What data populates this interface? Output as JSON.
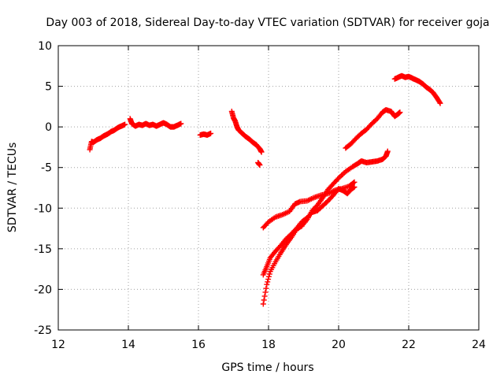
{
  "chart_data": {
    "type": "scatter",
    "title": "Day 003 of 2018, Sidereal Day-to-day VTEC variation (SDTVAR) for receiver goja",
    "xlabel": "GPS time / hours",
    "ylabel": "SDTVAR / TECUs",
    "xlim": [
      12,
      24
    ],
    "ylim": [
      -25,
      10
    ],
    "x_ticks": [
      12,
      14,
      16,
      18,
      20,
      22,
      24
    ],
    "y_ticks": [
      -25,
      -20,
      -15,
      -10,
      -5,
      0,
      5,
      10
    ],
    "x_tick_labels": [
      "12",
      "14",
      "16",
      "18",
      "20",
      "22",
      "24"
    ],
    "y_tick_labels": [
      "-25",
      "-20",
      "-15",
      "-10",
      "-5",
      "0",
      "5",
      "10"
    ],
    "grid": true,
    "marker": "+",
    "color": "#ff0000",
    "series": [
      {
        "points": [
          [
            12.9,
            -2.8
          ],
          [
            12.95,
            -1.8
          ],
          [
            13.0,
            -1.9
          ],
          [
            13.1,
            -1.6
          ],
          [
            13.2,
            -1.4
          ],
          [
            13.3,
            -1.1
          ],
          [
            13.4,
            -0.9
          ],
          [
            13.5,
            -0.6
          ],
          [
            13.6,
            -0.4
          ],
          [
            13.7,
            -0.1
          ],
          [
            13.8,
            0.1
          ],
          [
            13.9,
            0.3
          ]
        ]
      },
      {
        "points": [
          [
            14.05,
            1.0
          ],
          [
            14.1,
            0.4
          ],
          [
            14.2,
            0.1
          ],
          [
            14.3,
            0.3
          ],
          [
            14.4,
            0.2
          ],
          [
            14.5,
            0.4
          ],
          [
            14.6,
            0.2
          ],
          [
            14.7,
            0.3
          ],
          [
            14.8,
            0.1
          ],
          [
            14.9,
            0.3
          ],
          [
            15.0,
            0.5
          ],
          [
            15.1,
            0.3
          ],
          [
            15.2,
            0.0
          ],
          [
            15.3,
            0.0
          ],
          [
            15.4,
            0.2
          ],
          [
            15.5,
            0.4
          ]
        ]
      },
      {
        "points": [
          [
            16.05,
            -1.0
          ],
          [
            16.15,
            -0.9
          ],
          [
            16.25,
            -1.0
          ],
          [
            16.35,
            -0.8
          ]
        ]
      },
      {
        "points": [
          [
            16.95,
            1.9
          ],
          [
            17.0,
            1.1
          ],
          [
            17.05,
            0.7
          ],
          [
            17.1,
            0.0
          ],
          [
            17.15,
            -0.4
          ],
          [
            17.25,
            -0.8
          ],
          [
            17.35,
            -1.2
          ],
          [
            17.45,
            -1.5
          ],
          [
            17.55,
            -1.9
          ],
          [
            17.65,
            -2.2
          ],
          [
            17.75,
            -2.7
          ],
          [
            17.8,
            -3.1
          ]
        ]
      },
      {
        "points": [
          [
            17.7,
            -4.4
          ],
          [
            17.75,
            -4.7
          ]
        ]
      },
      {
        "points": [
          [
            17.85,
            -12.4
          ],
          [
            18.0,
            -11.7
          ],
          [
            18.2,
            -11.1
          ],
          [
            18.4,
            -10.8
          ],
          [
            18.6,
            -10.4
          ],
          [
            18.75,
            -9.5
          ],
          [
            18.9,
            -9.2
          ],
          [
            19.1,
            -9.1
          ],
          [
            19.3,
            -8.7
          ],
          [
            19.5,
            -8.4
          ],
          [
            19.7,
            -8.2
          ],
          [
            19.9,
            -7.8
          ],
          [
            20.1,
            -7.6
          ],
          [
            20.3,
            -7.3
          ],
          [
            20.45,
            -6.8
          ]
        ]
      },
      {
        "points": [
          [
            17.85,
            -18.2
          ],
          [
            17.95,
            -17.2
          ],
          [
            18.05,
            -16.1
          ],
          [
            18.2,
            -15.3
          ],
          [
            18.35,
            -14.6
          ],
          [
            18.5,
            -13.8
          ],
          [
            18.65,
            -13.2
          ],
          [
            18.8,
            -12.5
          ],
          [
            18.95,
            -11.7
          ],
          [
            19.1,
            -11.2
          ],
          [
            19.25,
            -10.5
          ],
          [
            19.4,
            -10.3
          ],
          [
            19.55,
            -9.7
          ],
          [
            19.7,
            -9.1
          ],
          [
            19.85,
            -8.4
          ],
          [
            20.0,
            -7.6
          ],
          [
            20.15,
            -7.9
          ],
          [
            20.25,
            -8.2
          ],
          [
            20.35,
            -7.7
          ],
          [
            20.45,
            -7.4
          ]
        ]
      },
      {
        "points": [
          [
            17.85,
            -21.8
          ],
          [
            17.95,
            -19.4
          ],
          [
            18.05,
            -17.8
          ],
          [
            18.2,
            -16.6
          ],
          [
            18.35,
            -15.5
          ],
          [
            18.5,
            -14.5
          ],
          [
            18.65,
            -13.6
          ],
          [
            18.8,
            -12.6
          ],
          [
            18.95,
            -12.2
          ],
          [
            19.1,
            -11.4
          ],
          [
            19.25,
            -10.3
          ],
          [
            19.4,
            -9.6
          ],
          [
            19.55,
            -8.7
          ],
          [
            19.7,
            -7.7
          ],
          [
            19.85,
            -7.0
          ],
          [
            20.0,
            -6.3
          ],
          [
            20.2,
            -5.5
          ],
          [
            20.4,
            -4.9
          ],
          [
            20.55,
            -4.5
          ],
          [
            20.65,
            -4.2
          ],
          [
            20.8,
            -4.4
          ],
          [
            20.95,
            -4.3
          ],
          [
            21.1,
            -4.2
          ],
          [
            21.25,
            -4.0
          ],
          [
            21.35,
            -3.6
          ],
          [
            21.4,
            -3.0
          ]
        ]
      },
      {
        "points": [
          [
            20.2,
            -2.6
          ],
          [
            20.35,
            -2.1
          ],
          [
            20.5,
            -1.4
          ],
          [
            20.65,
            -0.8
          ],
          [
            20.8,
            -0.3
          ],
          [
            20.95,
            0.4
          ],
          [
            21.1,
            1.0
          ],
          [
            21.25,
            1.8
          ],
          [
            21.35,
            2.1
          ],
          [
            21.5,
            1.9
          ],
          [
            21.6,
            1.3
          ],
          [
            21.7,
            1.6
          ],
          [
            21.75,
            1.8
          ]
        ]
      },
      {
        "points": [
          [
            21.6,
            5.9
          ],
          [
            21.7,
            6.1
          ],
          [
            21.8,
            6.3
          ],
          [
            21.9,
            6.1
          ],
          [
            22.0,
            6.2
          ],
          [
            22.1,
            6.0
          ],
          [
            22.2,
            5.8
          ],
          [
            22.3,
            5.6
          ],
          [
            22.4,
            5.3
          ],
          [
            22.5,
            4.9
          ],
          [
            22.6,
            4.6
          ],
          [
            22.7,
            4.2
          ],
          [
            22.8,
            3.6
          ],
          [
            22.9,
            2.9
          ]
        ]
      }
    ]
  }
}
